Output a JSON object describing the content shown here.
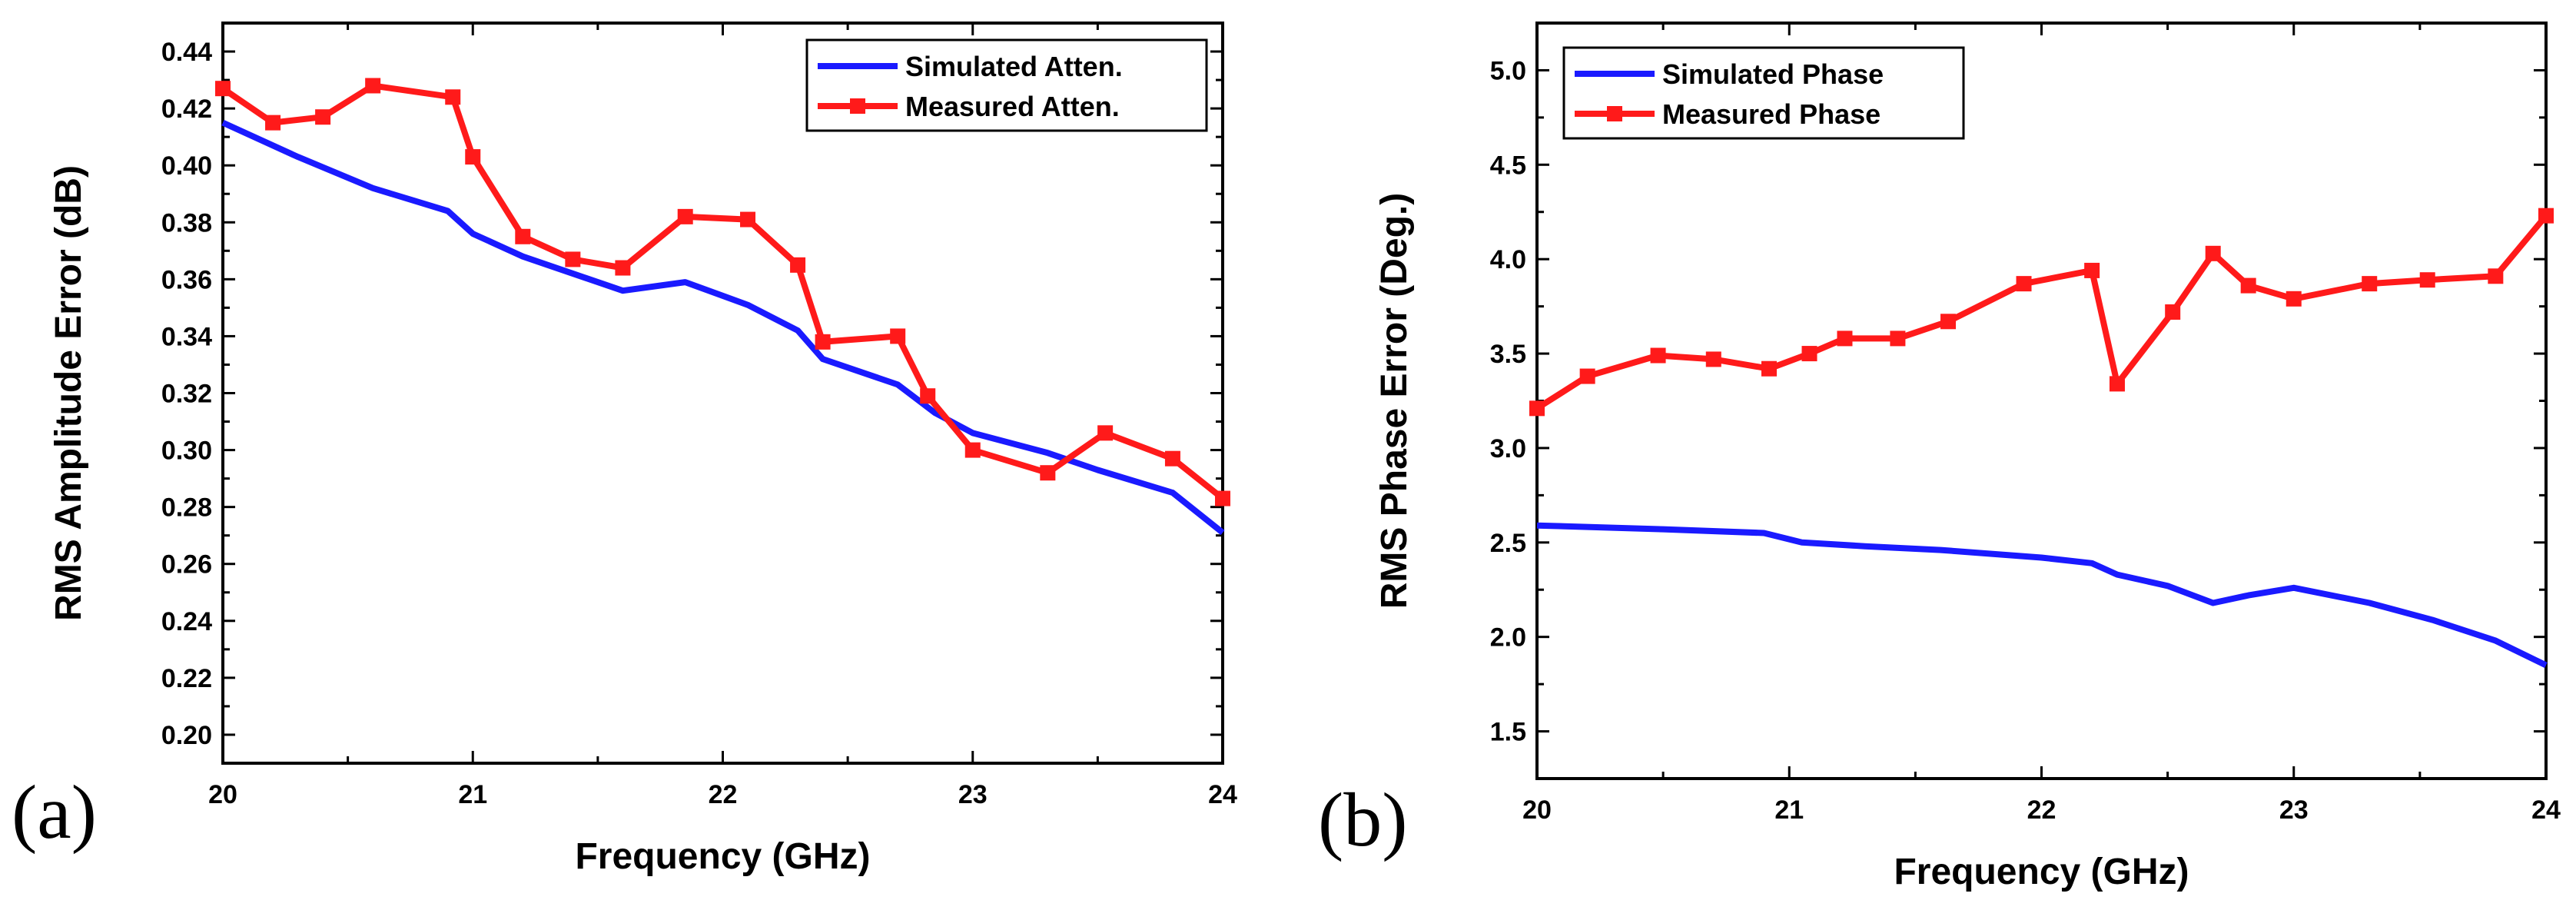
{
  "chart_data": [
    {
      "type": "line",
      "panel_label": "(a)",
      "title": "",
      "xlabel": "Frequency (GHz)",
      "ylabel": "RMS Amplitude Error (dB)",
      "xlim": [
        20,
        24
      ],
      "ylim": [
        0.19,
        0.45
      ],
      "xticks": [
        20,
        21,
        22,
        23,
        24
      ],
      "xtick_labels": [
        "20",
        "21",
        "22",
        "23",
        "24"
      ],
      "yticks": [
        0.2,
        0.22,
        0.24,
        0.26,
        0.28,
        0.3,
        0.32,
        0.34,
        0.36,
        0.38,
        0.4,
        0.42,
        0.44
      ],
      "ytick_labels": [
        "0.20",
        "0.22",
        "0.24",
        "0.26",
        "0.28",
        "0.30",
        "0.32",
        "0.34",
        "0.36",
        "0.38",
        "0.40",
        "0.42",
        "0.44"
      ],
      "grid": false,
      "legend_position": "top-right",
      "series": [
        {
          "name": "Simulated Atten.",
          "color": "#1a1aff",
          "marker": "none",
          "x": [
            20,
            20.3,
            20.6,
            20.9,
            21.0,
            21.2,
            21.6,
            21.85,
            22.1,
            22.3,
            22.4,
            22.7,
            22.85,
            23.0,
            23.3,
            23.5,
            23.8,
            24.0
          ],
          "y": [
            0.415,
            0.403,
            0.392,
            0.384,
            0.376,
            0.368,
            0.356,
            0.359,
            0.351,
            0.342,
            0.332,
            0.323,
            0.313,
            0.306,
            0.299,
            0.293,
            0.285,
            0.271
          ]
        },
        {
          "name": "Measured Atten.",
          "color": "#ff1a1a",
          "marker": "square",
          "x": [
            20.0,
            20.2,
            20.4,
            20.6,
            20.92,
            21.0,
            21.2,
            21.4,
            21.6,
            21.85,
            22.1,
            22.3,
            22.4,
            22.7,
            22.82,
            23.0,
            23.3,
            23.53,
            23.8,
            24.0
          ],
          "y": [
            0.427,
            0.415,
            0.417,
            0.428,
            0.424,
            0.403,
            0.375,
            0.367,
            0.364,
            0.382,
            0.381,
            0.365,
            0.338,
            0.34,
            0.319,
            0.3,
            0.292,
            0.306,
            0.297,
            0.283
          ]
        }
      ]
    },
    {
      "type": "line",
      "panel_label": "(b)",
      "title": "",
      "xlabel": "Frequency (GHz)",
      "ylabel": "RMS Phase Error (Deg.)",
      "xlim": [
        20,
        24
      ],
      "ylim": [
        1.25,
        5.25
      ],
      "xticks": [
        20,
        21,
        22,
        23,
        24
      ],
      "xtick_labels": [
        "20",
        "21",
        "22",
        "23",
        "24"
      ],
      "yticks": [
        1.5,
        2.0,
        2.5,
        3.0,
        3.5,
        4.0,
        4.5,
        5.0
      ],
      "ytick_labels": [
        "1.5",
        "2.0",
        "2.5",
        "3.0",
        "3.5",
        "4.0",
        "4.5",
        "5.0"
      ],
      "grid": false,
      "legend_position": "top-left",
      "series": [
        {
          "name": "Simulated Phase",
          "color": "#1a1aff",
          "marker": "none",
          "x": [
            20.0,
            20.5,
            20.9,
            21.05,
            21.3,
            21.6,
            22.0,
            22.2,
            22.3,
            22.5,
            22.68,
            22.82,
            23.0,
            23.3,
            23.55,
            23.8,
            24.0
          ],
          "y": [
            2.59,
            2.57,
            2.55,
            2.5,
            2.48,
            2.46,
            2.42,
            2.39,
            2.33,
            2.27,
            2.18,
            2.22,
            2.26,
            2.18,
            2.09,
            1.98,
            1.85
          ]
        },
        {
          "name": "Measured Phase",
          "color": "#ff1a1a",
          "marker": "square",
          "x": [
            20.0,
            20.2,
            20.48,
            20.7,
            20.92,
            21.08,
            21.22,
            21.43,
            21.63,
            21.93,
            22.2,
            22.3,
            22.52,
            22.68,
            22.82,
            23.0,
            23.3,
            23.53,
            23.8,
            24.0
          ],
          "y": [
            3.21,
            3.38,
            3.49,
            3.47,
            3.42,
            3.5,
            3.58,
            3.58,
            3.67,
            3.87,
            3.94,
            3.34,
            3.72,
            4.03,
            3.86,
            3.79,
            3.87,
            3.89,
            3.91,
            4.23
          ]
        }
      ]
    }
  ]
}
